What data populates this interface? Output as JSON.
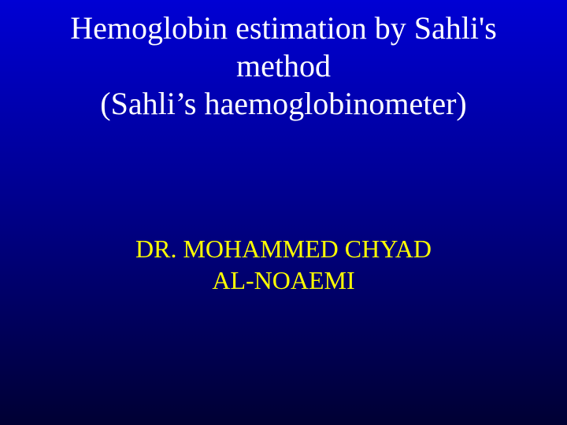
{
  "slide": {
    "title_line1": "Hemoglobin estimation by Sahli's",
    "title_line2": "method",
    "title_line3": "(Sahli’s haemoglobinometer)",
    "author_line1": "DR. MOHAMMED CHYAD",
    "author_line2": "AL-NOAEMI",
    "background_gradient_top": "#0000d4",
    "background_gradient_mid": "#000099",
    "background_gradient_bottom": "#000033",
    "title_color": "#ffffff",
    "author_color": "#ffff00",
    "title_fontsize": 40,
    "author_fontsize": 32,
    "font_family": "Times New Roman"
  }
}
